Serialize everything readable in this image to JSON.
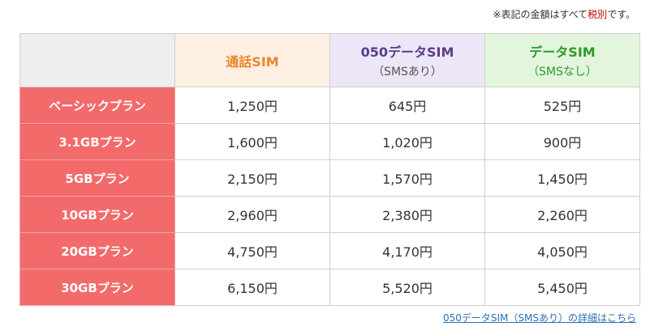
{
  "note": {
    "prefix": "※表記の金額はすべて",
    "emphasis": "税別",
    "suffix": "です。"
  },
  "headers": [
    {
      "title": "通話SIM",
      "sub": ""
    },
    {
      "title": "050データSIM",
      "sub": "（SMSあり）"
    },
    {
      "title": "データSIM",
      "sub": "（SMSなし）"
    }
  ],
  "rows": [
    {
      "plan": "ベーシックプラン",
      "prices": [
        "1,250円",
        "645円",
        "525円"
      ]
    },
    {
      "plan": "3.1GBプラン",
      "prices": [
        "1,600円",
        "1,020円",
        "900円"
      ]
    },
    {
      "plan": "5GBプラン",
      "prices": [
        "2,150円",
        "1,570円",
        "1,450円"
      ]
    },
    {
      "plan": "10GBプラン",
      "prices": [
        "2,960円",
        "2,380円",
        "2,260円"
      ]
    },
    {
      "plan": "20GBプラン",
      "prices": [
        "4,750円",
        "4,170円",
        "4,050円"
      ]
    },
    {
      "plan": "30GBプラン",
      "prices": [
        "6,150円",
        "5,520円",
        "5,450円"
      ]
    }
  ],
  "link_text": "050データSIM（SMSあり）の詳細はこちら"
}
